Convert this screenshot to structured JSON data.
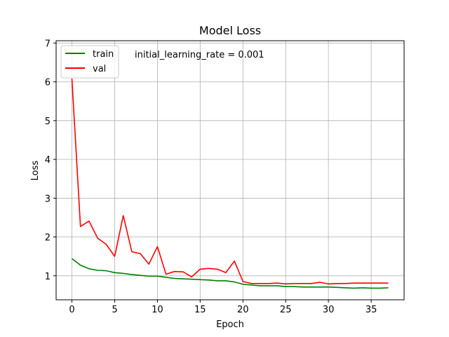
{
  "chart_data": {
    "type": "line",
    "title": "Model Loss",
    "xlabel": "Epoch",
    "ylabel": "Loss",
    "annotation": "initial_learning_rate = 0.001",
    "xlim": [
      -1.85,
      38.85
    ],
    "ylim": [
      0.38,
      7.06
    ],
    "xticks": [
      0,
      5,
      10,
      15,
      20,
      25,
      30,
      35
    ],
    "yticks": [
      1,
      2,
      3,
      4,
      5,
      6,
      7
    ],
    "grid": true,
    "legend_position": "upper left",
    "x": [
      0,
      1,
      2,
      3,
      4,
      5,
      6,
      7,
      8,
      9,
      10,
      11,
      12,
      13,
      14,
      15,
      16,
      17,
      18,
      19,
      20,
      21,
      22,
      23,
      24,
      25,
      26,
      27,
      28,
      29,
      30,
      31,
      32,
      33,
      34,
      35,
      36,
      37
    ],
    "series": [
      {
        "name": "train",
        "color": "#008000",
        "values": [
          1.44,
          1.27,
          1.18,
          1.14,
          1.13,
          1.08,
          1.06,
          1.03,
          1.01,
          0.99,
          0.99,
          0.96,
          0.93,
          0.92,
          0.91,
          0.9,
          0.89,
          0.87,
          0.87,
          0.84,
          0.78,
          0.76,
          0.74,
          0.74,
          0.74,
          0.72,
          0.72,
          0.71,
          0.71,
          0.71,
          0.71,
          0.7,
          0.69,
          0.68,
          0.69,
          0.68,
          0.68,
          0.69
        ]
      },
      {
        "name": "val",
        "color": "#ff0000",
        "values": [
          6.08,
          2.27,
          2.41,
          1.97,
          1.81,
          1.5,
          2.55,
          1.62,
          1.57,
          1.3,
          1.75,
          1.04,
          1.11,
          1.1,
          0.97,
          1.17,
          1.19,
          1.17,
          1.08,
          1.38,
          0.85,
          0.8,
          0.8,
          0.8,
          0.81,
          0.79,
          0.8,
          0.8,
          0.8,
          0.83,
          0.79,
          0.8,
          0.8,
          0.81,
          0.81,
          0.81,
          0.81,
          0.81
        ]
      }
    ]
  }
}
